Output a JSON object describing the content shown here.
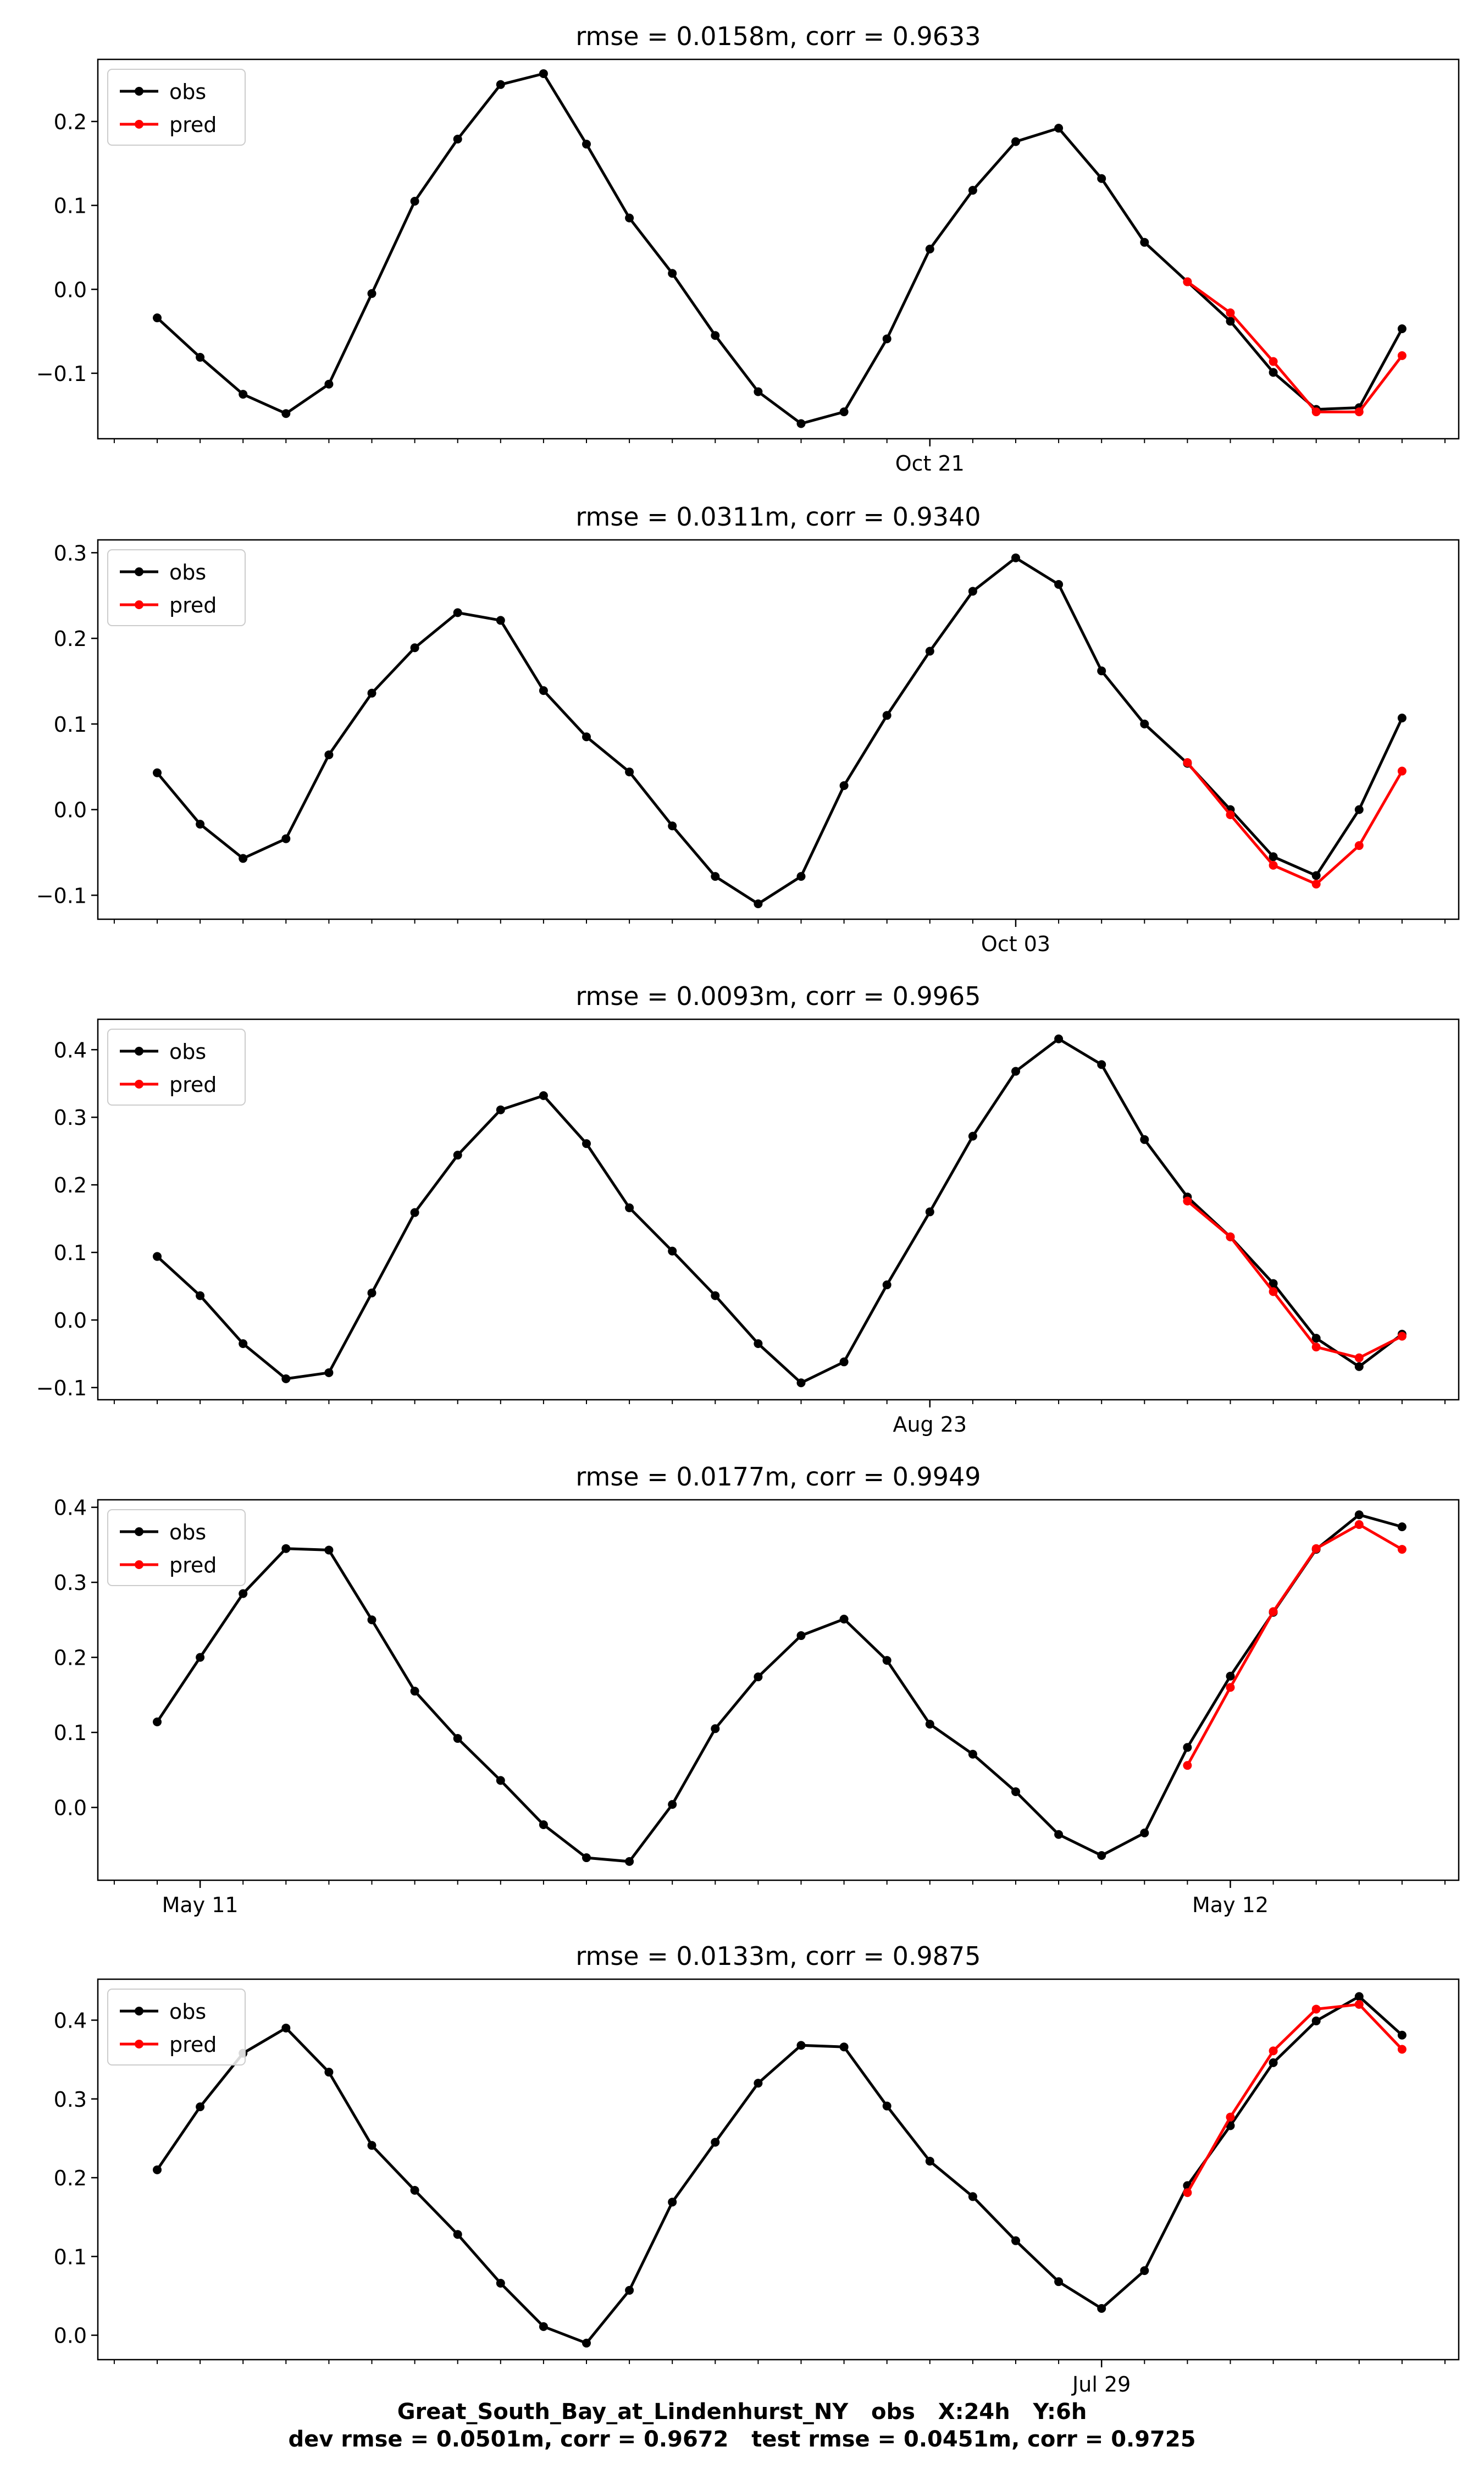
{
  "footer": {
    "line1": "Great_South_Bay_at_Lindenhurst_NY   obs   X:24h   Y:6h",
    "line2": "dev rmse = 0.0501m, corr = 0.9672   test rmse = 0.0451m, corr = 0.9725"
  },
  "colors": {
    "obs": "#000000",
    "pred": "#ff0000"
  },
  "chart_data": [
    {
      "type": "line",
      "title": "rmse = 0.0158m, corr = 0.9633",
      "legend": "top-left",
      "grid": false,
      "ylim": [
        -0.178,
        0.274
      ],
      "yticks": [
        -0.1,
        0.0,
        0.1,
        0.2
      ],
      "xdate_labels": [
        {
          "label": "Oct 21",
          "x": 18
        }
      ],
      "series": [
        {
          "name": "obs",
          "x_start": 0,
          "values": [
            -0.034,
            -0.081,
            -0.125,
            -0.148,
            -0.113,
            -0.005,
            0.105,
            0.179,
            0.244,
            0.257,
            0.173,
            0.085,
            0.019,
            -0.055,
            -0.122,
            -0.16,
            -0.146,
            -0.059,
            0.048,
            0.118,
            0.176,
            0.192,
            0.132,
            0.056,
            0.009,
            -0.038,
            -0.099,
            -0.143,
            -0.141,
            -0.047
          ]
        },
        {
          "name": "pred",
          "x_start": 24,
          "values": [
            0.009,
            -0.028,
            -0.086,
            -0.146,
            -0.146,
            -0.079
          ]
        }
      ]
    },
    {
      "type": "line",
      "title": "rmse = 0.0311m, corr = 0.9340",
      "legend": "top-left",
      "grid": false,
      "ylim": [
        -0.128,
        0.315
      ],
      "yticks": [
        -0.1,
        0.0,
        0.1,
        0.2,
        0.3
      ],
      "xdate_labels": [
        {
          "label": "Oct 03",
          "x": 20
        }
      ],
      "series": [
        {
          "name": "obs",
          "x_start": 0,
          "values": [
            0.043,
            -0.017,
            -0.057,
            -0.034,
            0.064,
            0.136,
            0.189,
            0.23,
            0.221,
            0.139,
            0.085,
            0.044,
            -0.019,
            -0.078,
            -0.11,
            -0.078,
            0.028,
            0.11,
            0.185,
            0.255,
            0.294,
            0.263,
            0.162,
            0.1,
            0.054,
            0.0,
            -0.055,
            -0.077,
            0.0,
            0.107
          ]
        },
        {
          "name": "pred",
          "x_start": 24,
          "values": [
            0.055,
            -0.006,
            -0.065,
            -0.087,
            -0.042,
            0.045
          ]
        }
      ]
    },
    {
      "type": "line",
      "title": "rmse = 0.0093m, corr = 0.9965",
      "legend": "top-left",
      "grid": false,
      "ylim": [
        -0.118,
        0.445
      ],
      "yticks": [
        -0.1,
        0.0,
        0.1,
        0.2,
        0.3,
        0.4
      ],
      "xdate_labels": [
        {
          "label": "Aug 23",
          "x": 18
        }
      ],
      "series": [
        {
          "name": "obs",
          "x_start": 0,
          "values": [
            0.094,
            0.036,
            -0.035,
            -0.087,
            -0.078,
            0.04,
            0.159,
            0.244,
            0.311,
            0.332,
            0.261,
            0.166,
            0.102,
            0.036,
            -0.035,
            -0.093,
            -0.062,
            0.052,
            0.16,
            0.272,
            0.368,
            0.416,
            0.378,
            0.267,
            0.182,
            0.123,
            0.054,
            -0.027,
            -0.069,
            -0.021
          ]
        },
        {
          "name": "pred",
          "x_start": 24,
          "values": [
            0.176,
            0.123,
            0.042,
            -0.04,
            -0.056,
            -0.024
          ]
        }
      ]
    },
    {
      "type": "line",
      "title": "rmse = 0.0177m, corr = 0.9949",
      "legend": "top-left",
      "grid": false,
      "ylim": [
        -0.097,
        0.41
      ],
      "yticks": [
        0.0,
        0.1,
        0.2,
        0.3,
        0.4
      ],
      "xdate_labels": [
        {
          "label": "May 11",
          "x": 1
        },
        {
          "label": "May 12",
          "x": 25
        }
      ],
      "series": [
        {
          "name": "obs",
          "x_start": 0,
          "values": [
            0.114,
            0.2,
            0.285,
            0.345,
            0.343,
            0.25,
            0.155,
            0.092,
            0.036,
            -0.023,
            -0.067,
            -0.072,
            0.004,
            0.105,
            0.174,
            0.229,
            0.251,
            0.196,
            0.111,
            0.071,
            0.021,
            -0.036,
            -0.064,
            -0.034,
            0.08,
            0.175,
            0.26,
            0.344,
            0.39,
            0.374
          ]
        },
        {
          "name": "pred",
          "x_start": 24,
          "values": [
            0.056,
            0.16,
            0.261,
            0.345,
            0.377,
            0.344
          ]
        }
      ]
    },
    {
      "type": "line",
      "title": "rmse = 0.0133m, corr = 0.9875",
      "legend": "top-left",
      "grid": false,
      "ylim": [
        -0.031,
        0.452
      ],
      "yticks": [
        0.0,
        0.1,
        0.2,
        0.3,
        0.4
      ],
      "xdate_labels": [
        {
          "label": "Jul 29",
          "x": 22
        }
      ],
      "series": [
        {
          "name": "obs",
          "x_start": 0,
          "values": [
            0.21,
            0.29,
            0.358,
            0.39,
            0.334,
            0.241,
            0.184,
            0.128,
            0.066,
            0.011,
            -0.01,
            0.057,
            0.169,
            0.245,
            0.32,
            0.368,
            0.366,
            0.291,
            0.221,
            0.176,
            0.12,
            0.068,
            0.034,
            0.082,
            0.19,
            0.266,
            0.346,
            0.399,
            0.43,
            0.381
          ]
        },
        {
          "name": "pred",
          "x_start": 24,
          "values": [
            0.181,
            0.277,
            0.361,
            0.414,
            0.42,
            0.363
          ]
        }
      ]
    }
  ]
}
